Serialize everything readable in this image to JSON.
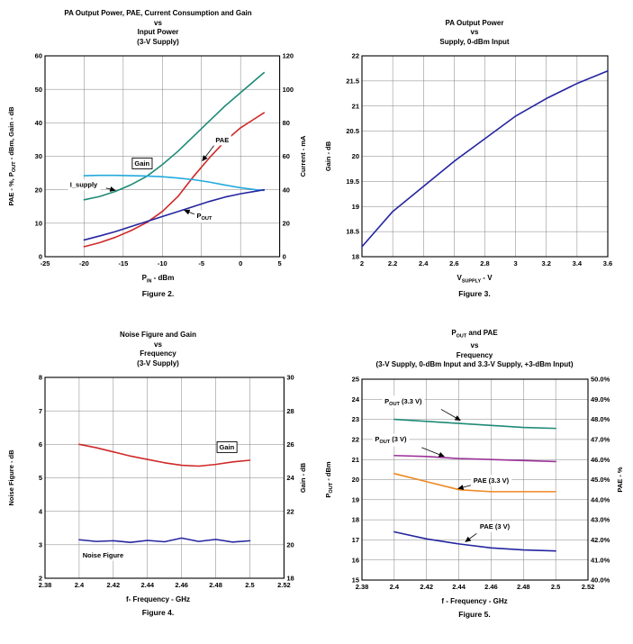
{
  "page": {
    "background": "#ffffff"
  },
  "chart_data": [
    {
      "type": "line",
      "title_lines": [
        "PA Output Power, PAE, Current Consumption and Gain",
        "vs",
        "Input Power",
        "(3-V Supply)"
      ],
      "caption": "Figure 2.",
      "x_label": "P~IN~ - dBm",
      "x_axis": {
        "min": -25,
        "max": 5,
        "ticks": [
          -25,
          -20,
          -15,
          -10,
          -5,
          0,
          5
        ],
        "tick_labels": [
          "-25",
          "-20",
          "-15",
          "-10",
          "-5",
          "0",
          "5"
        ]
      },
      "left_axis": {
        "label": "PAE - %, P~OUT~ - dBm, Gain - dB",
        "min": 0,
        "max": 60,
        "ticks": [
          0,
          10,
          20,
          30,
          40,
          50,
          60
        ],
        "tick_labels": [
          "0",
          "10",
          "20",
          "30",
          "40",
          "50",
          "60"
        ]
      },
      "right_axis": {
        "label": "Current - mA",
        "min": 0,
        "max": 120,
        "ticks": [
          0,
          20,
          40,
          60,
          80,
          100,
          120
        ],
        "tick_labels": [
          "0",
          "20",
          "40",
          "60",
          "80",
          "100",
          "120"
        ]
      },
      "series": [
        {
          "name": "I_supply",
          "axis": "right",
          "color": "#1e8a78",
          "x": [
            -20,
            -18,
            -16,
            -14,
            -12,
            -10,
            -8,
            -6,
            -4,
            -2,
            0,
            2,
            3
          ],
          "y": [
            34,
            36,
            39,
            43,
            48,
            55,
            63,
            72,
            81,
            90,
            98,
            106,
            110
          ]
        },
        {
          "name": "PAE",
          "axis": "left",
          "color": "#d02828",
          "x": [
            -20,
            -18,
            -16,
            -14,
            -12,
            -10,
            -8,
            -6,
            -4,
            -2,
            0,
            2,
            3
          ],
          "y": [
            3,
            4.2,
            5.8,
            7.8,
            10.2,
            13.5,
            18,
            24,
            29.5,
            34.5,
            38.5,
            41.5,
            43
          ]
        },
        {
          "name": "Gain",
          "axis": "left",
          "color": "#22aadd",
          "x": [
            -20,
            -18,
            -16,
            -14,
            -12,
            -10,
            -8,
            -6,
            -4,
            -2,
            0,
            2,
            3
          ],
          "y": [
            24.2,
            24.3,
            24.3,
            24.2,
            24.1,
            23.9,
            23.5,
            23,
            22.3,
            21.4,
            20.6,
            20,
            19.8
          ]
        },
        {
          "name": "P_OUT",
          "axis": "left",
          "color": "#2525a0",
          "x": [
            -20,
            -18,
            -16,
            -14,
            -12,
            -10,
            -8,
            -6,
            -4,
            -2,
            0,
            2,
            3
          ],
          "y": [
            5,
            6.2,
            7.5,
            9,
            10.5,
            12,
            13.5,
            15,
            16.5,
            17.8,
            18.8,
            19.6,
            20
          ]
        }
      ],
      "annotations": [
        {
          "text": "Gain",
          "x": -12.6,
          "y": 27.2,
          "anchor": "middle",
          "boxed": true
        },
        {
          "text": "I_supply",
          "x": -21.8,
          "y": 20.8,
          "anchor": "start",
          "arrow": {
            "x1": -17.2,
            "y1": 20.5,
            "x2": -16.0,
            "y2": 19.8
          }
        },
        {
          "text": "PAE",
          "x": -3.2,
          "y": 34.2,
          "anchor": "start",
          "arrow": {
            "x1": -3.4,
            "y1": 33.2,
            "x2": -4.9,
            "y2": 28.6
          }
        },
        {
          "text": "P~OUT~",
          "x": -5.6,
          "y": 11.6,
          "anchor": "start",
          "arrow": {
            "x1": -5.8,
            "y1": 12.6,
            "x2": -7.2,
            "y2": 13.9
          }
        }
      ]
    },
    {
      "type": "line",
      "title_lines": [
        "PA Output Power",
        "vs",
        "Supply, 0-dBm Input"
      ],
      "caption": "Figure 3.",
      "x_label": "V~SUPPLY~ - V",
      "x_axis": {
        "min": 2,
        "max": 3.6,
        "ticks": [
          2,
          2.2,
          2.4,
          2.6,
          2.8,
          3,
          3.2,
          3.4,
          3.6
        ],
        "tick_labels": [
          "2",
          "2.2",
          "2.4",
          "2.6",
          "2.8",
          "3",
          "3.2",
          "3.4",
          "3.6"
        ]
      },
      "left_axis": {
        "label": "Gain - dB",
        "min": 18,
        "max": 22,
        "ticks": [
          18,
          18.5,
          19,
          19.5,
          20,
          20.5,
          21,
          21.5,
          22
        ],
        "tick_labels": [
          "18",
          "18.5",
          "19",
          "19.5",
          "20",
          "20.5",
          "21",
          "21.5",
          "22"
        ]
      },
      "right_axis": null,
      "series": [
        {
          "name": "Gain",
          "axis": "left",
          "color": "#2525a0",
          "x": [
            2,
            2.2,
            2.4,
            2.6,
            2.8,
            3,
            3.2,
            3.4,
            3.6
          ],
          "y": [
            18.2,
            18.9,
            19.4,
            19.9,
            20.35,
            20.8,
            21.15,
            21.45,
            21.7
          ]
        }
      ],
      "annotations": []
    },
    {
      "type": "line",
      "title_lines": [
        "Noise Figure and Gain",
        "vs",
        "Frequency",
        "(3-V Supply)"
      ],
      "caption": "Figure 4.",
      "x_label": "f- Frequency - GHz",
      "x_axis": {
        "min": 2.38,
        "max": 2.52,
        "ticks": [
          2.38,
          2.4,
          2.42,
          2.44,
          2.46,
          2.48,
          2.5,
          2.52
        ],
        "tick_labels": [
          "2.38",
          "2.4",
          "2.42",
          "2.44",
          "2.46",
          "2.48",
          "2.5",
          "2.52"
        ]
      },
      "left_axis": {
        "label": "Noise Figure - dB",
        "min": 2,
        "max": 8,
        "ticks": [
          2,
          3,
          4,
          5,
          6,
          7,
          8
        ],
        "tick_labels": [
          "2",
          "3",
          "4",
          "5",
          "6",
          "7",
          "8"
        ]
      },
      "right_axis": {
        "label": "Gain - dB",
        "min": 18,
        "max": 30,
        "ticks": [
          18,
          20,
          22,
          24,
          26,
          28,
          30
        ],
        "tick_labels": [
          "18",
          "20",
          "22",
          "24",
          "26",
          "28",
          "30"
        ]
      },
      "series": [
        {
          "name": "Gain",
          "axis": "right",
          "color": "#d02828",
          "x": [
            2.4,
            2.41,
            2.42,
            2.43,
            2.44,
            2.45,
            2.46,
            2.47,
            2.48,
            2.49,
            2.5
          ],
          "y": [
            26,
            25.8,
            25.55,
            25.3,
            25.1,
            24.9,
            24.75,
            24.7,
            24.8,
            24.95,
            25.05
          ]
        },
        {
          "name": "Noise Figure",
          "axis": "left",
          "color": "#2525a0",
          "x": [
            2.4,
            2.41,
            2.42,
            2.43,
            2.44,
            2.45,
            2.46,
            2.47,
            2.48,
            2.49,
            2.5
          ],
          "y": [
            3.15,
            3.1,
            3.12,
            3.07,
            3.13,
            3.09,
            3.2,
            3.1,
            3.16,
            3.08,
            3.12
          ]
        }
      ],
      "annotations": [
        {
          "text": "Gain",
          "x": 2.4865,
          "y": 5.85,
          "anchor": "middle",
          "boxed": true
        },
        {
          "text": "Noise Figure",
          "x": 2.402,
          "y": 2.62,
          "anchor": "start"
        }
      ]
    },
    {
      "type": "line",
      "title_lines": [
        "P~OUT~ and PAE",
        "vs",
        "Frequency",
        "(3-V Supply, 0-dBm Input and 3.3-V Supply, +3-dBm Input)"
      ],
      "caption": "Figure 5.",
      "x_label": "f - Frequency - GHz",
      "x_axis": {
        "min": 2.38,
        "max": 2.52,
        "ticks": [
          2.38,
          2.4,
          2.42,
          2.44,
          2.46,
          2.48,
          2.5,
          2.52
        ],
        "tick_labels": [
          "2.38",
          "2.4",
          "2.42",
          "2.44",
          "2.46",
          "2.48",
          "2.5",
          "2.52"
        ]
      },
      "left_axis": {
        "label": "P~OUT~ - dBm",
        "min": 15,
        "max": 25,
        "ticks": [
          15,
          16,
          17,
          18,
          19,
          20,
          21,
          22,
          23,
          24,
          25
        ],
        "tick_labels": [
          "15",
          "16",
          "17",
          "18",
          "19",
          "20",
          "21",
          "22",
          "23",
          "24",
          "25"
        ]
      },
      "right_axis": {
        "label": "PAE - %",
        "min": 40,
        "max": 50,
        "ticks": [
          40,
          41,
          42,
          43,
          44,
          45,
          46,
          47,
          48,
          49,
          50
        ],
        "tick_labels": [
          "40.0%",
          "41.0%",
          "42.0%",
          "43.0%",
          "44.0%",
          "45.0%",
          "46.0%",
          "47.0%",
          "48.0%",
          "49.0%",
          "50.0%"
        ]
      },
      "series": [
        {
          "name": "P_OUT (3.3 V)",
          "axis": "left",
          "color": "#1e8a78",
          "x": [
            2.4,
            2.42,
            2.44,
            2.46,
            2.48,
            2.5
          ],
          "y": [
            23,
            22.9,
            22.8,
            22.7,
            22.6,
            22.55
          ]
        },
        {
          "name": "P_OUT (3 V)",
          "axis": "left",
          "color": "#9b3399",
          "x": [
            2.4,
            2.42,
            2.44,
            2.46,
            2.48,
            2.5
          ],
          "y": [
            21.2,
            21.15,
            21.05,
            21,
            20.95,
            20.9
          ]
        },
        {
          "name": "PAE (3.3 V)",
          "axis": "right",
          "color": "#ee8822",
          "x": [
            2.4,
            2.42,
            2.44,
            2.46,
            2.48,
            2.5
          ],
          "y": [
            45.3,
            44.9,
            44.5,
            44.4,
            44.4,
            44.4
          ]
        },
        {
          "name": "PAE (3 V)",
          "axis": "right",
          "color": "#2525a0",
          "x": [
            2.4,
            2.42,
            2.44,
            2.46,
            2.48,
            2.5
          ],
          "y": [
            42.4,
            42.05,
            41.8,
            41.6,
            41.5,
            41.45
          ]
        }
      ],
      "annotations": [
        {
          "text": "P~OUT~ (3.3 V)",
          "x": 2.394,
          "y": 23.8,
          "anchor": "start",
          "arrow": {
            "x1": 2.429,
            "y1": 23.5,
            "x2": 2.441,
            "y2": 22.95
          }
        },
        {
          "text": "P~OUT~ (3 V)",
          "x": 2.388,
          "y": 21.9,
          "anchor": "start",
          "arrow": {
            "x1": 2.417,
            "y1": 21.6,
            "x2": 2.431,
            "y2": 21.15
          }
        },
        {
          "text": "PAE (3.3 V)",
          "x": 2.449,
          "y": 19.85,
          "anchor": "start",
          "arrow": {
            "x1": 2.4475,
            "y1": 19.72,
            "x2": 2.4395,
            "y2": 19.55
          }
        },
        {
          "text": "PAE (3 V)",
          "x": 2.453,
          "y": 17.55,
          "anchor": "start",
          "arrow": {
            "x1": 2.451,
            "y1": 17.32,
            "x2": 2.444,
            "y2": 16.9
          }
        }
      ]
    }
  ]
}
